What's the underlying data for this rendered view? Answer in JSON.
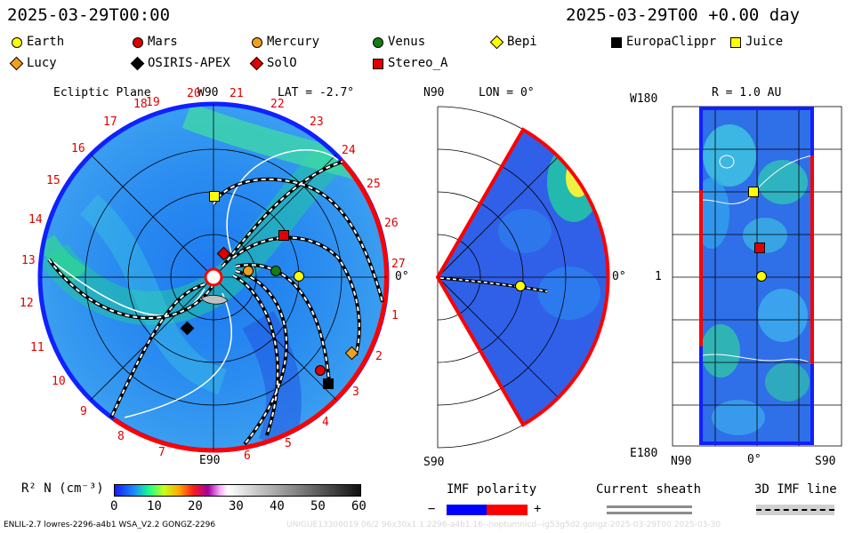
{
  "header": {
    "date_left": "2025-03-29T00:00",
    "date_right": "2025-03-29T00 +0.00 day"
  },
  "legend": [
    {
      "label": "Earth",
      "shape": "circle",
      "color": "#ffff00"
    },
    {
      "label": "Mars",
      "shape": "circle",
      "color": "#e00000"
    },
    {
      "label": "Mercury",
      "shape": "circle",
      "color": "#f0a020"
    },
    {
      "label": "Venus",
      "shape": "circle",
      "color": "#108010"
    },
    {
      "label": "Bepi",
      "shape": "diamond",
      "color": "#ffff00"
    },
    {
      "label": "EuropaClippr",
      "shape": "square",
      "color": "#000000"
    },
    {
      "label": "Juice",
      "shape": "square",
      "color": "#ffff00"
    },
    {
      "label": "Lucy",
      "shape": "diamond",
      "color": "#f0a020"
    },
    {
      "label": "OSIRIS-APEX",
      "shape": "diamond",
      "color": "#000000"
    },
    {
      "label": "SolO",
      "shape": "diamond",
      "color": "#e00000"
    },
    {
      "label": "Stereo_A",
      "shape": "square",
      "color": "#e00000"
    }
  ],
  "panels": {
    "ecliptic": {
      "title": "Ecliptic Plane",
      "top": "W90",
      "bottom": "E90",
      "lat": "LAT = -2.7°",
      "right": "0°",
      "carrington": [
        "19",
        "20",
        "21",
        "22",
        "23",
        "24",
        "25",
        "26",
        "27",
        "1",
        "2",
        "3",
        "4",
        "5",
        "6",
        "7",
        "8",
        "9",
        "10",
        "11",
        "12",
        "13",
        "14",
        "15",
        "16",
        "17",
        "18"
      ]
    },
    "meridional": {
      "top": "N90",
      "lon": "LON = 0°",
      "bottom": "S90",
      "right": "0°"
    },
    "map": {
      "title": "R = 1.0 AU",
      "top_left": "W180",
      "bottom_left": "E180",
      "mid_left": "1",
      "x_left": "N90",
      "x_mid": "0°",
      "x_right": "S90"
    }
  },
  "colorbar": {
    "label": "R² N (cm⁻³)",
    "ticks": [
      "0",
      "10",
      "20",
      "30",
      "40",
      "50",
      "60"
    ]
  },
  "imf": {
    "label": "IMF polarity",
    "minus": "−",
    "plus": "+",
    "neg_color": "#0000ff",
    "pos_color": "#ff0000"
  },
  "sheath": {
    "label": "Current sheath"
  },
  "imf_line": {
    "label": "3D IMF line"
  },
  "footer": {
    "left": "ENLIL-2.7 lowres-2296-a4b1 WSA_V2.2 GONGZ-2296",
    "right": "UNIGUE13300019 06/2 96x30x1 1.2296-a4b1.16--noptumnicd--ig53g5d2.gongz-2025-03-29T00   2025-03-30"
  }
}
